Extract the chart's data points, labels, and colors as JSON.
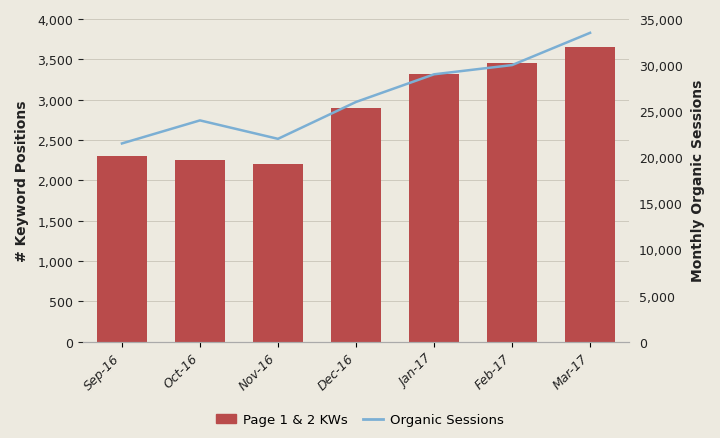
{
  "categories": [
    "Sep-16",
    "Oct-16",
    "Nov-16",
    "Dec-16",
    "Jan-17",
    "Feb-17",
    "Mar-17"
  ],
  "bar_values": [
    2300,
    2250,
    2200,
    2900,
    3320,
    3450,
    3650
  ],
  "line_values": [
    21500,
    24000,
    22000,
    26000,
    29000,
    30000,
    33500
  ],
  "bar_color": "#b94b4b",
  "line_color": "#7bafd4",
  "background_color": "#edeae0",
  "plot_bg_color": "#e8e4d8",
  "ylabel_left": "# Keyword Positions",
  "ylabel_right": "Monthly Organic Sessions",
  "ylim_left": [
    0,
    4000
  ],
  "ylim_right": [
    0,
    35000
  ],
  "yticks_left": [
    0,
    500,
    1000,
    1500,
    2000,
    2500,
    3000,
    3500,
    4000
  ],
  "yticks_right": [
    0,
    5000,
    10000,
    15000,
    20000,
    25000,
    30000,
    35000
  ],
  "legend_bar_label": "Page 1 & 2 KWs",
  "legend_line_label": "Organic Sessions",
  "title_fontsize": 11,
  "tick_fontsize": 9,
  "label_fontsize": 10
}
